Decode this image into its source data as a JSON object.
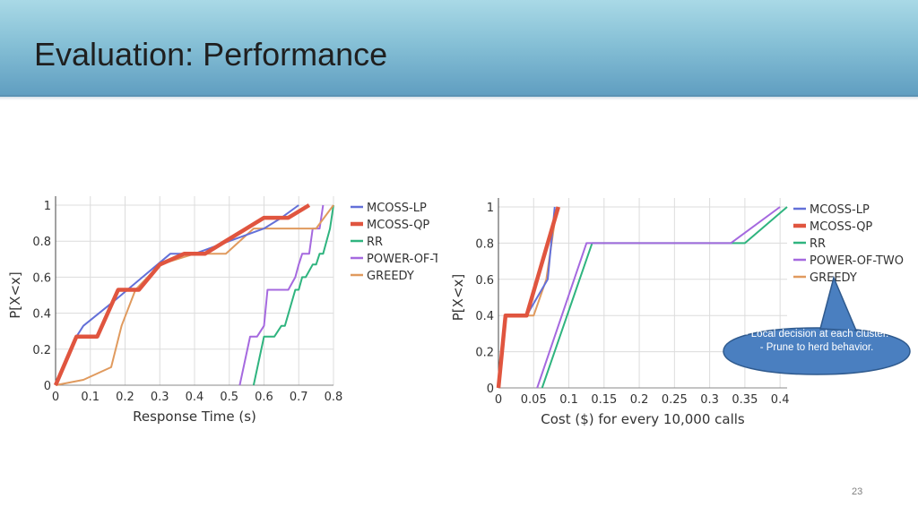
{
  "slide": {
    "title": "Evaluation: Performance",
    "page_number": "23"
  },
  "callout": {
    "line1": "- Local decision at each cluster.",
    "line2": "- Prune to herd behavior."
  },
  "colors": {
    "MCOSS-LP": "#6370d8",
    "MCOSS-QP": "#e0553f",
    "RR": "#2fb47f",
    "POWER-OF-TWO": "#a569df",
    "GREEDY": "#e09a5e",
    "callout_fill": "#4a7fc0"
  },
  "chart_data": [
    {
      "type": "line",
      "xlabel": "Response Time (s)",
      "ylabel": "P[X<x]",
      "xlim": [
        0,
        0.8
      ],
      "ylim": [
        0,
        1
      ],
      "xticks": [
        "0",
        "0.1",
        "0.2",
        "0.3",
        "0.4",
        "0.5",
        "0.6",
        "0.7",
        "0.8"
      ],
      "yticks": [
        "0",
        "0.2",
        "0.4",
        "0.6",
        "0.8",
        "1"
      ],
      "grid": true,
      "legend": "right",
      "series": [
        {
          "name": "MCOSS-LP",
          "x": [
            0,
            0.06,
            0.08,
            0.17,
            0.25,
            0.33,
            0.4,
            0.5,
            0.6,
            0.65,
            0.7
          ],
          "y": [
            0,
            0.27,
            0.33,
            0.47,
            0.6,
            0.73,
            0.73,
            0.8,
            0.87,
            0.93,
            1
          ]
        },
        {
          "name": "MCOSS-QP",
          "x": [
            0,
            0.06,
            0.12,
            0.18,
            0.24,
            0.3,
            0.37,
            0.43,
            0.6,
            0.67,
            0.73
          ],
          "y": [
            0,
            0.27,
            0.27,
            0.53,
            0.53,
            0.67,
            0.73,
            0.73,
            0.93,
            0.93,
            1
          ]
        },
        {
          "name": "RR",
          "x": [
            0.57,
            0.6,
            0.63,
            0.65,
            0.66,
            0.69,
            0.7,
            0.71,
            0.72,
            0.74,
            0.75,
            0.76,
            0.77,
            0.79,
            0.8
          ],
          "y": [
            0,
            0.27,
            0.27,
            0.33,
            0.33,
            0.53,
            0.53,
            0.6,
            0.6,
            0.67,
            0.67,
            0.73,
            0.73,
            0.87,
            1
          ]
        },
        {
          "name": "POWER-OF-TWO",
          "x": [
            0.53,
            0.56,
            0.58,
            0.6,
            0.61,
            0.63,
            0.67,
            0.69,
            0.7,
            0.71,
            0.73,
            0.74,
            0.76,
            0.77
          ],
          "y": [
            0,
            0.27,
            0.27,
            0.33,
            0.53,
            0.53,
            0.53,
            0.6,
            0.67,
            0.73,
            0.73,
            0.87,
            0.87,
            1
          ]
        },
        {
          "name": "GREEDY",
          "x": [
            0,
            0.08,
            0.16,
            0.19,
            0.23,
            0.3,
            0.4,
            0.49,
            0.57,
            0.75,
            0.8
          ],
          "y": [
            0,
            0.03,
            0.1,
            0.33,
            0.53,
            0.67,
            0.73,
            0.73,
            0.87,
            0.87,
            1
          ]
        }
      ]
    },
    {
      "type": "line",
      "xlabel": "Cost ($) for every 10,000 calls",
      "ylabel": "P[X<x]",
      "xlim": [
        0,
        0.41
      ],
      "ylim": [
        0,
        1
      ],
      "xticks": [
        "0",
        "0.05",
        "0.1",
        "0.15",
        "0.2",
        "0.25",
        "0.3",
        "0.35",
        "0.4"
      ],
      "yticks": [
        "0",
        "0.2",
        "0.4",
        "0.6",
        "0.8",
        "1"
      ],
      "grid": true,
      "legend": "right",
      "series": [
        {
          "name": "MCOSS-LP",
          "x": [
            0,
            0.01,
            0.04,
            0.07,
            0.08
          ],
          "y": [
            0,
            0.4,
            0.4,
            0.6,
            1
          ]
        },
        {
          "name": "MCOSS-QP",
          "x": [
            0,
            0.01,
            0.04,
            0.07,
            0.085
          ],
          "y": [
            0,
            0.4,
            0.4,
            0.8,
            1
          ]
        },
        {
          "name": "RR",
          "x": [
            0.062,
            0.133,
            0.35,
            0.41
          ],
          "y": [
            0,
            0.8,
            0.8,
            1
          ]
        },
        {
          "name": "POWER-OF-TWO",
          "x": [
            0.055,
            0.125,
            0.33,
            0.4
          ],
          "y": [
            0,
            0.8,
            0.8,
            1
          ]
        },
        {
          "name": "GREEDY",
          "x": [
            0,
            0.01,
            0.05,
            0.068,
            0.083
          ],
          "y": [
            0,
            0.4,
            0.4,
            0.6,
            1
          ]
        }
      ]
    }
  ]
}
